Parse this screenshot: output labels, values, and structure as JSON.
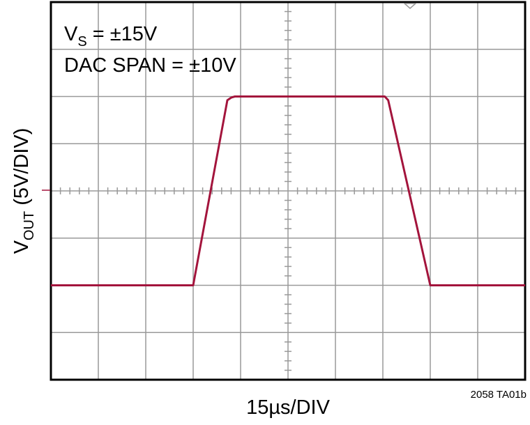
{
  "chart_data": {
    "type": "line",
    "title": "",
    "xlabel": "15µs/DIV",
    "ylabel": {
      "main": "V",
      "subscript": "OUT",
      "rest": " (5V/DIV)"
    },
    "annotations": [
      {
        "main": "V",
        "subscript": "S",
        "rest": " = ±15V"
      },
      {
        "main": "DAC SPAN = ±10V",
        "subscript": "",
        "rest": ""
      }
    ],
    "figure_id": "2058 TA01b",
    "x_unit": "µs",
    "y_unit": "V",
    "xlim": [
      -75,
      75
    ],
    "ylim": [
      -20,
      20
    ],
    "grid": true,
    "divisions": {
      "x": 10,
      "y": 8
    },
    "line_color": "#a3143c",
    "series": [
      {
        "x": [
          -75,
          -30,
          -19.2,
          -17.9,
          -16.8,
          0,
          30.6,
          31.7,
          45,
          75
        ],
        "y": [
          -10,
          -10,
          9.6,
          9.9,
          10,
          10,
          10,
          9.6,
          -10,
          -10
        ]
      }
    ]
  }
}
